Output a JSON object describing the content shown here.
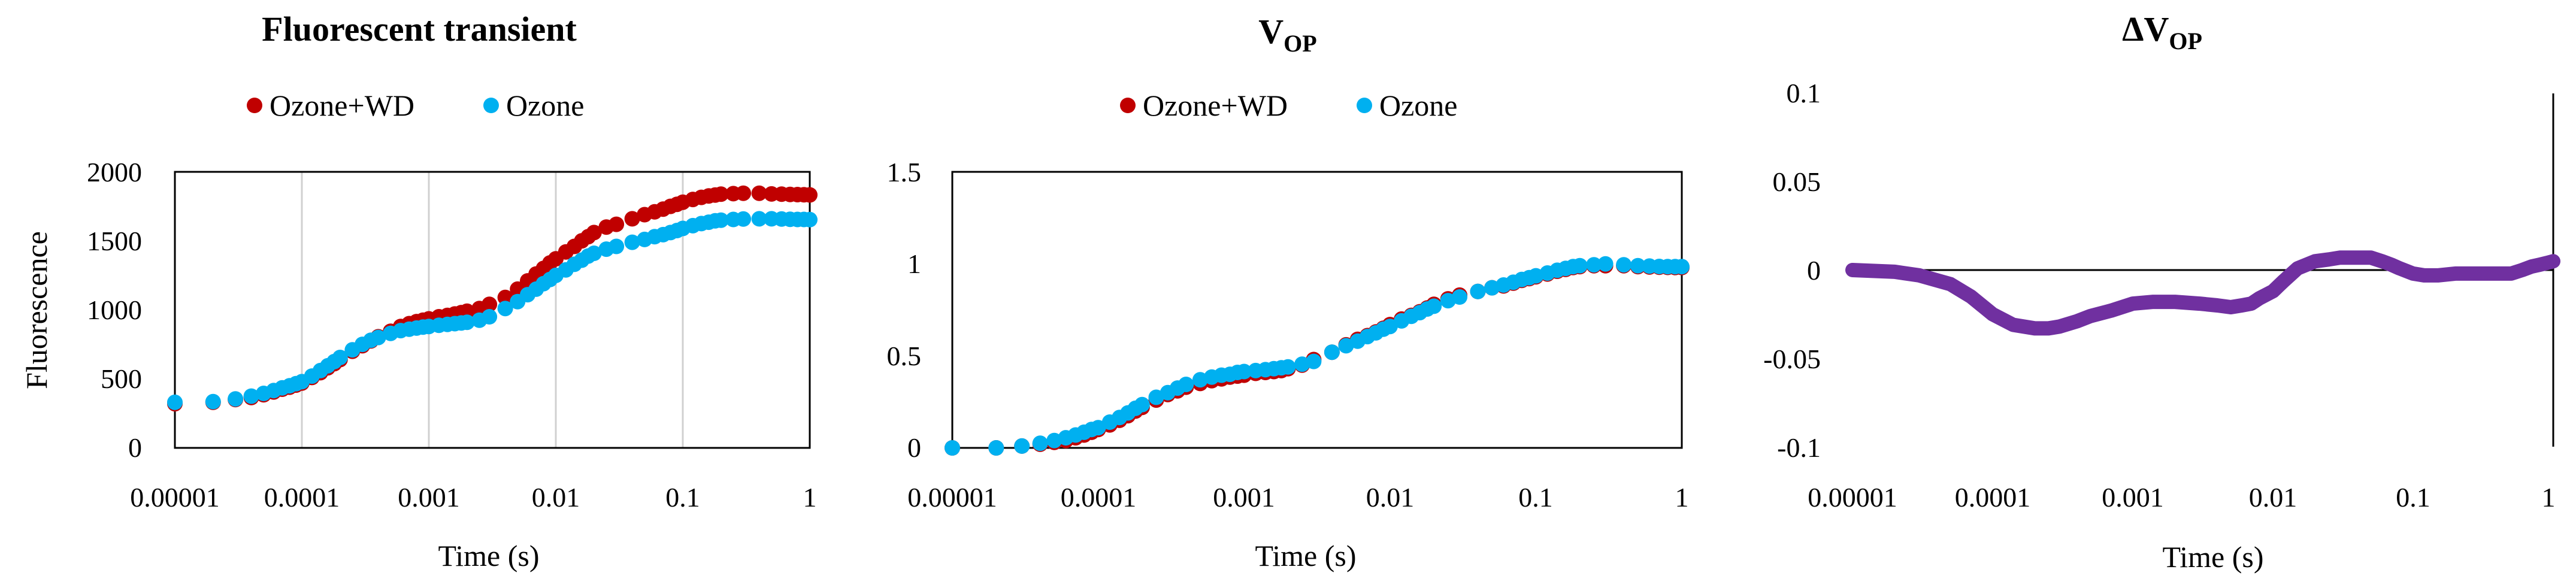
{
  "chart_data": [
    {
      "type": "scatter",
      "title": "Fluorescent transient",
      "xlabel": "Time (s)",
      "ylabel": "Fluorescence",
      "xscale": "log",
      "xlim": [
        1e-05,
        1
      ],
      "ylim": [
        0,
        2000
      ],
      "xticks": [
        "0.00001",
        "0.0001",
        "0.001",
        "0.01",
        "0.1",
        "1"
      ],
      "yticks": [
        "0",
        "500",
        "1000",
        "1500",
        "2000"
      ],
      "grid": "vertical",
      "legend": "top",
      "series": [
        {
          "name": "Ozone+WD",
          "color": "#C00000",
          "x": [
            1e-05,
            2e-05,
            3e-05,
            4e-05,
            5e-05,
            6e-05,
            7e-05,
            8e-05,
            9e-05,
            0.0001,
            0.00012,
            0.00014,
            0.00016,
            0.00018,
            0.0002,
            0.00025,
            0.0003,
            0.00035,
            0.0004,
            0.0005,
            0.0006,
            0.0007,
            0.0008,
            0.0009,
            0.001,
            0.0012,
            0.0014,
            0.0016,
            0.0018,
            0.002,
            0.0025,
            0.003,
            0.004,
            0.005,
            0.006,
            0.007,
            0.008,
            0.009,
            0.01,
            0.012,
            0.014,
            0.016,
            0.018,
            0.02,
            0.025,
            0.03,
            0.04,
            0.05,
            0.06,
            0.07,
            0.08,
            0.09,
            0.1,
            0.12,
            0.14,
            0.16,
            0.18,
            0.2,
            0.25,
            0.3,
            0.4,
            0.5,
            0.6,
            0.7,
            0.8,
            0.9,
            1
          ],
          "y": [
            320,
            330,
            350,
            365,
            385,
            405,
            425,
            440,
            455,
            470,
            510,
            545,
            580,
            610,
            640,
            700,
            740,
            775,
            805,
            845,
            880,
            900,
            915,
            925,
            935,
            950,
            960,
            970,
            980,
            990,
            1010,
            1040,
            1090,
            1150,
            1210,
            1260,
            1300,
            1340,
            1370,
            1420,
            1460,
            1500,
            1530,
            1560,
            1600,
            1620,
            1660,
            1690,
            1710,
            1730,
            1750,
            1765,
            1780,
            1800,
            1815,
            1825,
            1832,
            1838,
            1842,
            1845,
            1845,
            1840,
            1838,
            1836,
            1835,
            1834,
            1833
          ]
        },
        {
          "name": "Ozone",
          "color": "#00B0F0",
          "x": [
            1e-05,
            2e-05,
            3e-05,
            4e-05,
            5e-05,
            6e-05,
            7e-05,
            8e-05,
            9e-05,
            0.0001,
            0.00012,
            0.00014,
            0.00016,
            0.00018,
            0.0002,
            0.00025,
            0.0003,
            0.00035,
            0.0004,
            0.0005,
            0.0006,
            0.0007,
            0.0008,
            0.0009,
            0.001,
            0.0012,
            0.0014,
            0.0016,
            0.0018,
            0.002,
            0.0025,
            0.003,
            0.004,
            0.005,
            0.006,
            0.007,
            0.008,
            0.009,
            0.01,
            0.012,
            0.014,
            0.016,
            0.018,
            0.02,
            0.025,
            0.03,
            0.04,
            0.05,
            0.06,
            0.07,
            0.08,
            0.09,
            0.1,
            0.12,
            0.14,
            0.16,
            0.18,
            0.2,
            0.25,
            0.3,
            0.4,
            0.5,
            0.6,
            0.7,
            0.8,
            0.9,
            1
          ],
          "y": [
            330,
            335,
            355,
            375,
            395,
            415,
            435,
            450,
            465,
            480,
            520,
            560,
            595,
            625,
            655,
            710,
            750,
            780,
            800,
            830,
            850,
            860,
            868,
            875,
            880,
            888,
            895,
            900,
            905,
            910,
            925,
            950,
            1010,
            1060,
            1110,
            1150,
            1190,
            1220,
            1250,
            1290,
            1330,
            1360,
            1390,
            1410,
            1440,
            1460,
            1490,
            1510,
            1530,
            1545,
            1560,
            1575,
            1590,
            1610,
            1625,
            1635,
            1645,
            1650,
            1655,
            1658,
            1660,
            1660,
            1658,
            1656,
            1655,
            1655,
            1654
          ]
        }
      ]
    },
    {
      "type": "scatter",
      "title": "V",
      "title_sub": "OP",
      "xlabel": "Time (s)",
      "ylabel": "",
      "xscale": "log",
      "xlim": [
        1e-05,
        1
      ],
      "ylim": [
        0,
        1.5
      ],
      "xticks": [
        "0.00001",
        "0.0001",
        "0.001",
        "0.01",
        "0.1",
        "1"
      ],
      "yticks": [
        "0",
        "0.5",
        "1",
        "1.5"
      ],
      "grid": "none",
      "legend": "top",
      "series": [
        {
          "name": "Ozone+WD",
          "color": "#C00000",
          "x": [
            1e-05,
            2e-05,
            3e-05,
            4e-05,
            5e-05,
            6e-05,
            7e-05,
            8e-05,
            9e-05,
            0.0001,
            0.00012,
            0.00014,
            0.00016,
            0.00018,
            0.0002,
            0.00025,
            0.0003,
            0.00035,
            0.0004,
            0.0005,
            0.0006,
            0.0007,
            0.0008,
            0.0009,
            0.001,
            0.0012,
            0.0014,
            0.0016,
            0.0018,
            0.002,
            0.0025,
            0.003,
            0.004,
            0.005,
            0.006,
            0.007,
            0.008,
            0.009,
            0.01,
            0.012,
            0.014,
            0.016,
            0.018,
            0.02,
            0.025,
            0.03,
            0.04,
            0.05,
            0.06,
            0.07,
            0.08,
            0.09,
            0.1,
            0.12,
            0.14,
            0.16,
            0.18,
            0.2,
            0.25,
            0.3,
            0.4,
            0.5,
            0.6,
            0.7,
            0.8,
            0.9,
            1
          ],
          "y": [
            0,
            0,
            0.01,
            0.02,
            0.03,
            0.04,
            0.055,
            0.07,
            0.085,
            0.1,
            0.125,
            0.15,
            0.175,
            0.2,
            0.22,
            0.26,
            0.29,
            0.31,
            0.33,
            0.35,
            0.365,
            0.375,
            0.385,
            0.39,
            0.395,
            0.405,
            0.41,
            0.415,
            0.42,
            0.43,
            0.45,
            0.48,
            0.52,
            0.56,
            0.59,
            0.61,
            0.63,
            0.65,
            0.67,
            0.7,
            0.72,
            0.74,
            0.76,
            0.78,
            0.81,
            0.83,
            0.85,
            0.87,
            0.88,
            0.895,
            0.91,
            0.92,
            0.93,
            0.945,
            0.96,
            0.97,
            0.98,
            0.985,
            0.99,
            0.99,
            0.99,
            0.985,
            0.983,
            0.982,
            0.981,
            0.98,
            0.98
          ]
        },
        {
          "name": "Ozone",
          "color": "#00B0F0",
          "x": [
            1e-05,
            2e-05,
            3e-05,
            4e-05,
            5e-05,
            6e-05,
            7e-05,
            8e-05,
            9e-05,
            0.0001,
            0.00012,
            0.00014,
            0.00016,
            0.00018,
            0.0002,
            0.00025,
            0.0003,
            0.00035,
            0.0004,
            0.0005,
            0.0006,
            0.0007,
            0.0008,
            0.0009,
            0.001,
            0.0012,
            0.0014,
            0.0016,
            0.0018,
            0.002,
            0.0025,
            0.003,
            0.004,
            0.005,
            0.006,
            0.007,
            0.008,
            0.009,
            0.01,
            0.012,
            0.014,
            0.016,
            0.018,
            0.02,
            0.025,
            0.03,
            0.04,
            0.05,
            0.06,
            0.07,
            0.08,
            0.09,
            0.1,
            0.12,
            0.14,
            0.16,
            0.18,
            0.2,
            0.25,
            0.3,
            0.4,
            0.5,
            0.6,
            0.7,
            0.8,
            0.9,
            1
          ],
          "y": [
            0,
            0,
            0.01,
            0.025,
            0.04,
            0.055,
            0.07,
            0.085,
            0.1,
            0.11,
            0.14,
            0.165,
            0.19,
            0.215,
            0.235,
            0.275,
            0.3,
            0.325,
            0.345,
            0.37,
            0.385,
            0.395,
            0.4,
            0.41,
            0.415,
            0.42,
            0.425,
            0.43,
            0.435,
            0.44,
            0.455,
            0.47,
            0.52,
            0.555,
            0.58,
            0.605,
            0.625,
            0.645,
            0.66,
            0.69,
            0.715,
            0.735,
            0.755,
            0.77,
            0.8,
            0.82,
            0.85,
            0.87,
            0.885,
            0.9,
            0.915,
            0.925,
            0.935,
            0.95,
            0.965,
            0.975,
            0.985,
            0.99,
            0.995,
            1.0,
            0.995,
            0.99,
            0.988,
            0.986,
            0.985,
            0.985,
            0.985
          ]
        }
      ]
    },
    {
      "type": "line",
      "title": "ΔV",
      "title_sub": "OP",
      "xlabel": "Time (s)",
      "ylabel": "",
      "xscale": "log",
      "xlim": [
        1e-05,
        1
      ],
      "ylim": [
        -0.1,
        0.1
      ],
      "xticks": [
        "0.00001",
        "0.0001",
        "0.001",
        "0.01",
        "0.1",
        "1"
      ],
      "yticks": [
        "-0.1",
        "-0.05",
        "0",
        "0.05",
        "0.1"
      ],
      "grid": "none",
      "legend": "none",
      "series": [
        {
          "name": "ΔVOP",
          "color": "#7030A0",
          "x": [
            1e-05,
            2e-05,
            3e-05,
            5e-05,
            7e-05,
            0.0001,
            0.00014,
            0.0002,
            0.00025,
            0.0003,
            0.0004,
            0.0005,
            0.0007,
            0.001,
            0.0014,
            0.002,
            0.003,
            0.004,
            0.005,
            0.006,
            0.007,
            0.008,
            0.01,
            0.012,
            0.015,
            0.02,
            0.025,
            0.03,
            0.04,
            0.05,
            0.06,
            0.07,
            0.08,
            0.1,
            0.12,
            0.15,
            0.2,
            0.25,
            0.3,
            0.4,
            0.5,
            0.6,
            0.7,
            0.8,
            0.9,
            1
          ],
          "y": [
            0,
            -0.001,
            -0.003,
            -0.008,
            -0.015,
            -0.025,
            -0.031,
            -0.033,
            -0.033,
            -0.032,
            -0.029,
            -0.026,
            -0.023,
            -0.019,
            -0.018,
            -0.018,
            -0.019,
            -0.02,
            -0.021,
            -0.02,
            -0.019,
            -0.016,
            -0.012,
            -0.006,
            0.001,
            0.005,
            0.006,
            0.007,
            0.007,
            0.007,
            0.005,
            0.003,
            0.001,
            -0.002,
            -0.003,
            -0.003,
            -0.002,
            -0.002,
            -0.002,
            -0.002,
            -0.002,
            0.0,
            0.002,
            0.003,
            0.004,
            0.005
          ]
        }
      ]
    }
  ]
}
